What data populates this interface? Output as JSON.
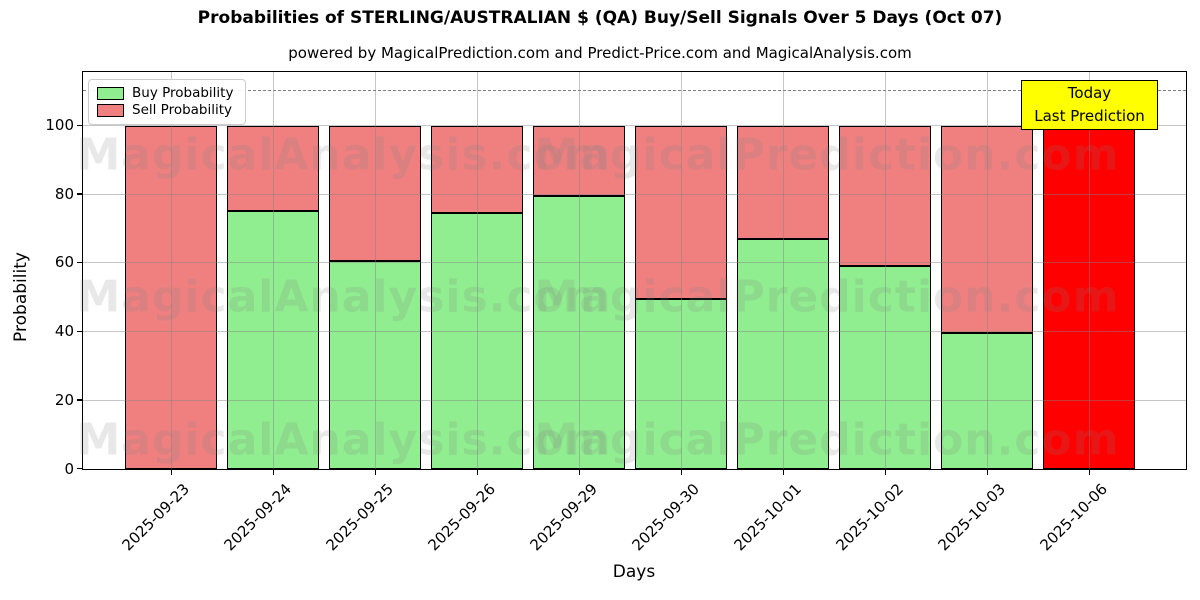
{
  "title": "Probabilities of STERLING/AUSTRALIAN $ (QA) Buy/Sell Signals Over 5 Days (Oct 07)",
  "subtitle": "powered by MagicalPrediction.com and Predict-Price.com and MagicalAnalysis.com",
  "legend": {
    "items": [
      {
        "label": "Buy Probability",
        "color": "#90ee90"
      },
      {
        "label": "Sell Probability",
        "color": "#f08080"
      }
    ]
  },
  "annotation": {
    "line1": "Today",
    "line2": "Last Prediction",
    "bg_color": "#ffff00"
  },
  "watermarks": {
    "left": "MagicalAnalysis.com",
    "right": "MagicalPrediction.com"
  },
  "chart_data": {
    "type": "bar",
    "stacked": true,
    "title": "Probabilities of STERLING/AUSTRALIAN $ (QA) Buy/Sell Signals Over 5 Days (Oct 07)",
    "xlabel": "Days",
    "ylabel": "Probability",
    "categories": [
      "2025-09-23",
      "2025-09-24",
      "2025-09-25",
      "2025-09-26",
      "2025-09-29",
      "2025-09-30",
      "2025-10-01",
      "2025-10-02",
      "2025-10-03",
      "2025-10-06"
    ],
    "series": [
      {
        "name": "Buy Probability",
        "color": "#90ee90",
        "values": [
          0,
          75,
          60.5,
          74.5,
          79.5,
          49.5,
          67,
          59,
          39.5,
          0
        ]
      },
      {
        "name": "Sell Probability",
        "color": "#f08080",
        "values": [
          100,
          25,
          39.5,
          25.5,
          20.5,
          50.5,
          33,
          41,
          60.5,
          100
        ]
      }
    ],
    "last_bar_sell_color": "#ff0000",
    "yticks": [
      0,
      20,
      40,
      60,
      80,
      100
    ],
    "ylim": [
      0,
      115.3
    ],
    "dashed_line_y": 110,
    "grid": true,
    "legend_position": "upper left"
  }
}
